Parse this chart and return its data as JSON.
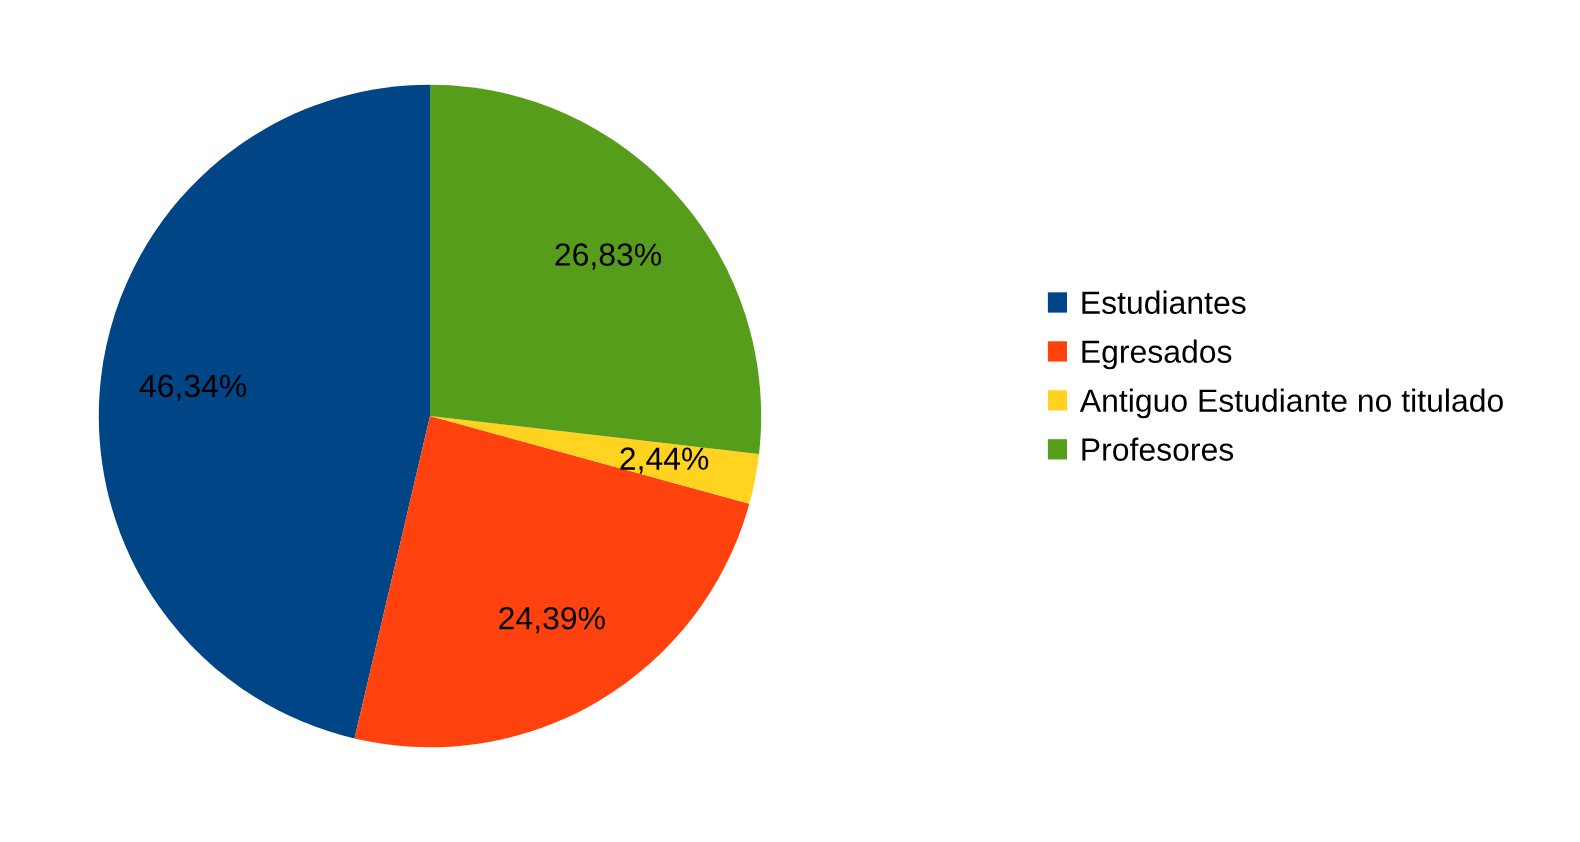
{
  "chart_data": {
    "type": "pie",
    "categories": [
      "Estudiantes",
      "Egresados",
      "Antiguo Estudiante no titulado",
      "Profesores"
    ],
    "values": [
      46.34,
      24.39,
      2.44,
      26.83
    ],
    "value_labels": [
      "46,34%",
      "24,39%",
      "2,44%",
      "26,83%"
    ],
    "colors": [
      "#004586",
      "#ff420e",
      "#ffd320",
      "#579d1c"
    ],
    "legend": "right"
  }
}
